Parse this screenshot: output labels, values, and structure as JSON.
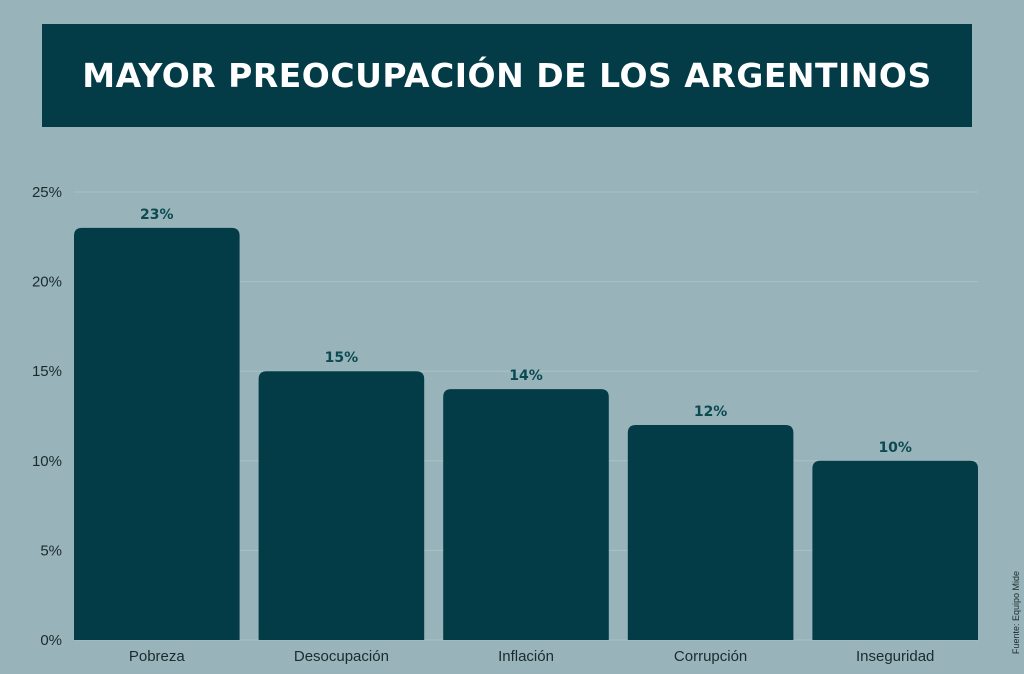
{
  "title": "MAYOR PREOCUPACIÓN DE LOS ARGENTINOS",
  "source": "Fuente: Equipo Mide",
  "colors": {
    "background": "#98b4ba",
    "bar": "#033b47",
    "banner": "#033b47",
    "data_label": "#0b4a52"
  },
  "chart_data": {
    "type": "bar",
    "categories": [
      "Pobreza",
      "Desocupación",
      "Inflación",
      "Corrupción",
      "Inseguridad"
    ],
    "values": [
      23,
      15,
      14,
      12,
      10
    ],
    "value_labels": [
      "23%",
      "15%",
      "14%",
      "12%",
      "10%"
    ],
    "y_ticks": [
      0,
      5,
      10,
      15,
      20,
      25
    ],
    "y_tick_labels": [
      "0%",
      "5%",
      "10%",
      "15%",
      "20%",
      "25%"
    ],
    "ylim": [
      0,
      25
    ],
    "grid": true,
    "title": "MAYOR PREOCUPACIÓN DE LOS ARGENTINOS"
  }
}
